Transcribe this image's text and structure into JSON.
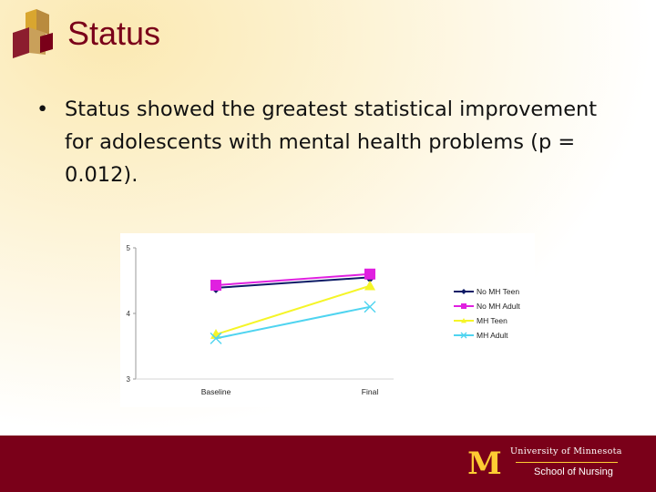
{
  "slide": {
    "title": "Status",
    "bullet_text": "Status showed the greatest statistical improvement for adolescents with mental health problems (p = 0.012).",
    "colors": {
      "maroon": "#7a0019",
      "gold": "#ffcc33"
    }
  },
  "chart_data": {
    "type": "line",
    "categories": [
      "Baseline",
      "Final"
    ],
    "ylim": [
      3,
      5
    ],
    "yticks": [
      3,
      4,
      5
    ],
    "legend_position": "right",
    "series": [
      {
        "name": "No MH Teen",
        "values": [
          4.39,
          4.55
        ],
        "color": "#0d1b66",
        "marker": "diamond"
      },
      {
        "name": "No MH Adult",
        "values": [
          4.43,
          4.6
        ],
        "color": "#e020e0",
        "marker": "square"
      },
      {
        "name": "MH Teen",
        "values": [
          3.68,
          4.42
        ],
        "color": "#f5f528",
        "marker": "triangle"
      },
      {
        "name": "MH Adult",
        "values": [
          3.62,
          4.1
        ],
        "color": "#4fd4f0",
        "marker": "x"
      }
    ]
  },
  "footer": {
    "logo_letter": "M",
    "university": "University of Minnesota",
    "school": "School of Nursing"
  }
}
